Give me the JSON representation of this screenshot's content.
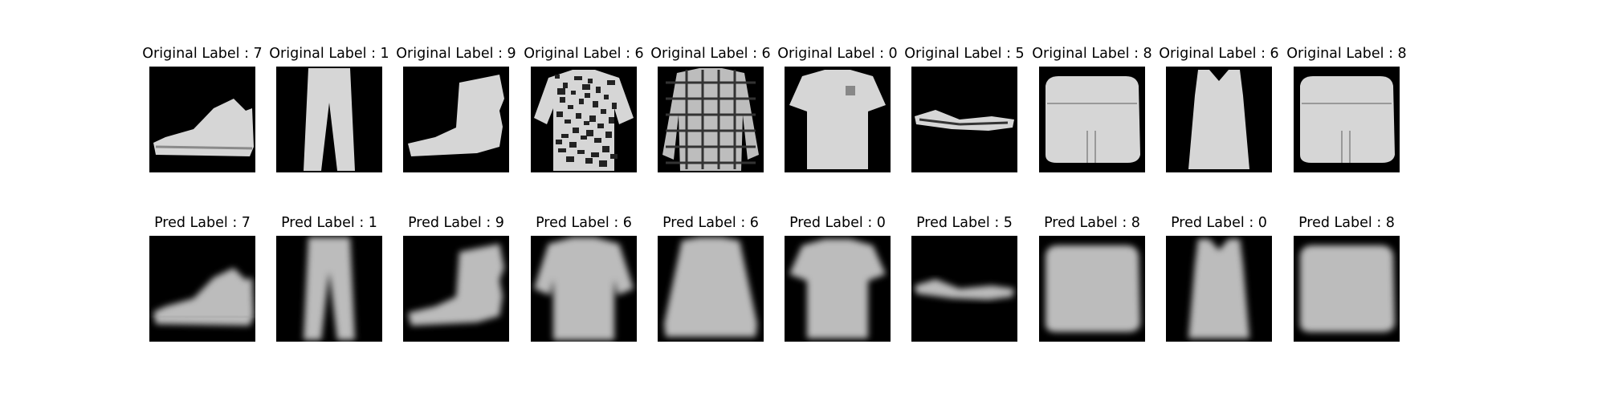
{
  "figure": {
    "rows": [
      {
        "name": "original",
        "panels": [
          {
            "title": "Original Label : 7",
            "label": 7,
            "item": "sneaker"
          },
          {
            "title": "Original Label : 1",
            "label": 1,
            "item": "trouser"
          },
          {
            "title": "Original Label : 9",
            "label": 9,
            "item": "ankle-boot"
          },
          {
            "title": "Original Label : 6",
            "label": 6,
            "item": "patterned-shirt"
          },
          {
            "title": "Original Label : 6",
            "label": 6,
            "item": "plaid-shirt"
          },
          {
            "title": "Original Label : 0",
            "label": 0,
            "item": "t-shirt"
          },
          {
            "title": "Original Label : 5",
            "label": 5,
            "item": "sandal"
          },
          {
            "title": "Original Label : 8",
            "label": 8,
            "item": "bag"
          },
          {
            "title": "Original Label : 6",
            "label": 6,
            "item": "tank-top"
          },
          {
            "title": "Original Label : 8",
            "label": 8,
            "item": "bag"
          }
        ]
      },
      {
        "name": "predicted",
        "panels": [
          {
            "title": "Pred Label : 7",
            "label": 7,
            "item": "sneaker"
          },
          {
            "title": "Pred Label : 1",
            "label": 1,
            "item": "trouser"
          },
          {
            "title": "Pred Label : 9",
            "label": 9,
            "item": "ankle-boot"
          },
          {
            "title": "Pred Label : 6",
            "label": 6,
            "item": "shirt"
          },
          {
            "title": "Pred Label : 6",
            "label": 6,
            "item": "pullover"
          },
          {
            "title": "Pred Label : 0",
            "label": 0,
            "item": "t-shirt"
          },
          {
            "title": "Pred Label : 5",
            "label": 5,
            "item": "sandal"
          },
          {
            "title": "Pred Label : 8",
            "label": 8,
            "item": "bag"
          },
          {
            "title": "Pred Label : 0",
            "label": 0,
            "item": "tank-top"
          },
          {
            "title": "Pred Label : 8",
            "label": 8,
            "item": "bag"
          }
        ]
      }
    ],
    "colors": {
      "background": "#ffffff",
      "thumbnail": "#000000",
      "garment_light": "#d9d9d9",
      "garment_blur": "#bdbdbd"
    }
  }
}
